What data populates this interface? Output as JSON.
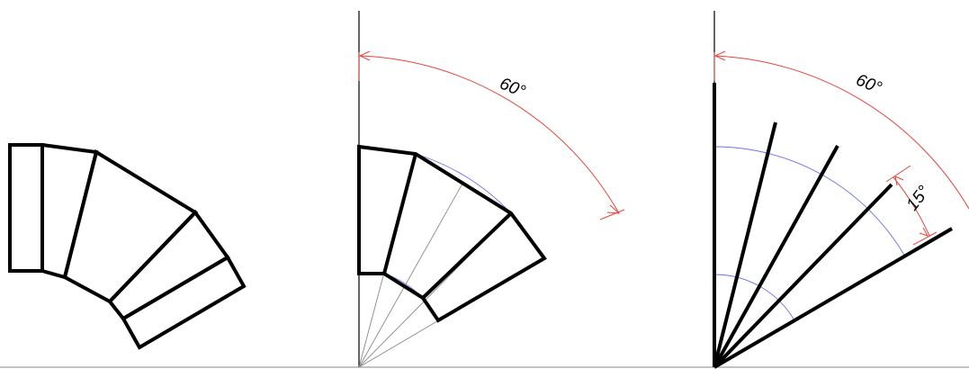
{
  "figure": {
    "panels": [
      {
        "id": "elbow-outline"
      },
      {
        "id": "elbow-construction",
        "angle_label": "60°",
        "total_angle_deg": 60
      },
      {
        "id": "segment-angles",
        "angle_label": "60°",
        "step_label": "15°",
        "total_angle_deg": 60,
        "step_angle_deg": 15
      }
    ],
    "colors": {
      "outline": "#000000",
      "dimension": "#e8453c",
      "arc": "#6f6ff0",
      "guide": "#8a8a8a"
    }
  }
}
